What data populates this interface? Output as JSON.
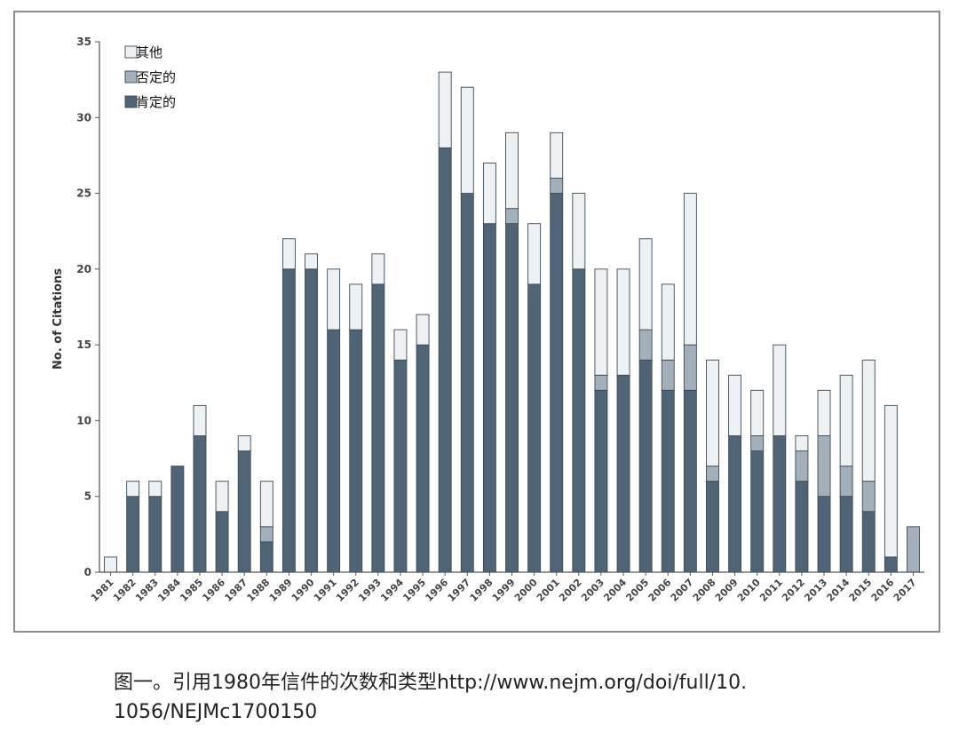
{
  "chart_data": {
    "type": "bar",
    "stacked": true,
    "title": "",
    "xlabel": "",
    "ylabel": "No. of Citations",
    "ylim": [
      0,
      35
    ],
    "yticks": [
      0,
      5,
      10,
      15,
      20,
      25,
      30,
      35
    ],
    "grid": false,
    "legend_position": "top-left",
    "categories": [
      "1981",
      "1982",
      "1983",
      "1984",
      "1985",
      "1986",
      "1987",
      "1988",
      "1989",
      "1990",
      "1991",
      "1992",
      "1993",
      "1994",
      "1995",
      "1996",
      "1997",
      "1998",
      "1999",
      "2000",
      "2001",
      "2002",
      "2003",
      "2004",
      "2005",
      "2006",
      "2007",
      "2008",
      "2009",
      "2010",
      "2011",
      "2012",
      "2013",
      "2014",
      "2015",
      "2016",
      "2017"
    ],
    "series": [
      {
        "name": "肯定的",
        "color": "#4f6577",
        "values": [
          0,
          5,
          5,
          7,
          9,
          4,
          8,
          2,
          20,
          20,
          16,
          16,
          19,
          14,
          15,
          28,
          25,
          23,
          23,
          19,
          25,
          20,
          12,
          13,
          14,
          12,
          12,
          6,
          9,
          8,
          9,
          6,
          5,
          5,
          4,
          1,
          0
        ]
      },
      {
        "name": "否定的",
        "color": "#a3afba",
        "values": [
          0,
          0,
          0,
          0,
          0,
          0,
          0,
          1,
          0,
          0,
          0,
          0,
          0,
          0,
          0,
          0,
          0,
          0,
          1,
          0,
          1,
          0,
          1,
          0,
          2,
          2,
          3,
          1,
          0,
          1,
          0,
          2,
          4,
          2,
          2,
          0,
          3
        ]
      },
      {
        "name": "其他",
        "color": "#eef1f4",
        "values": [
          1,
          1,
          1,
          0,
          2,
          2,
          1,
          3,
          2,
          1,
          4,
          3,
          2,
          2,
          2,
          5,
          7,
          4,
          5,
          4,
          3,
          5,
          7,
          7,
          6,
          5,
          10,
          7,
          4,
          3,
          6,
          1,
          3,
          6,
          8,
          10,
          0
        ]
      }
    ]
  },
  "legend": {
    "items": [
      {
        "label": "其他",
        "color": "#eef1f4"
      },
      {
        "label": "否定的",
        "color": "#a3afba"
      },
      {
        "label": "肯定的",
        "color": "#4f6577"
      }
    ]
  },
  "caption": {
    "line1": "图一。引用1980年信件的次数和类型http://www.nejm.org/doi/full/10.",
    "line2": "1056/NEJMc1700150"
  }
}
